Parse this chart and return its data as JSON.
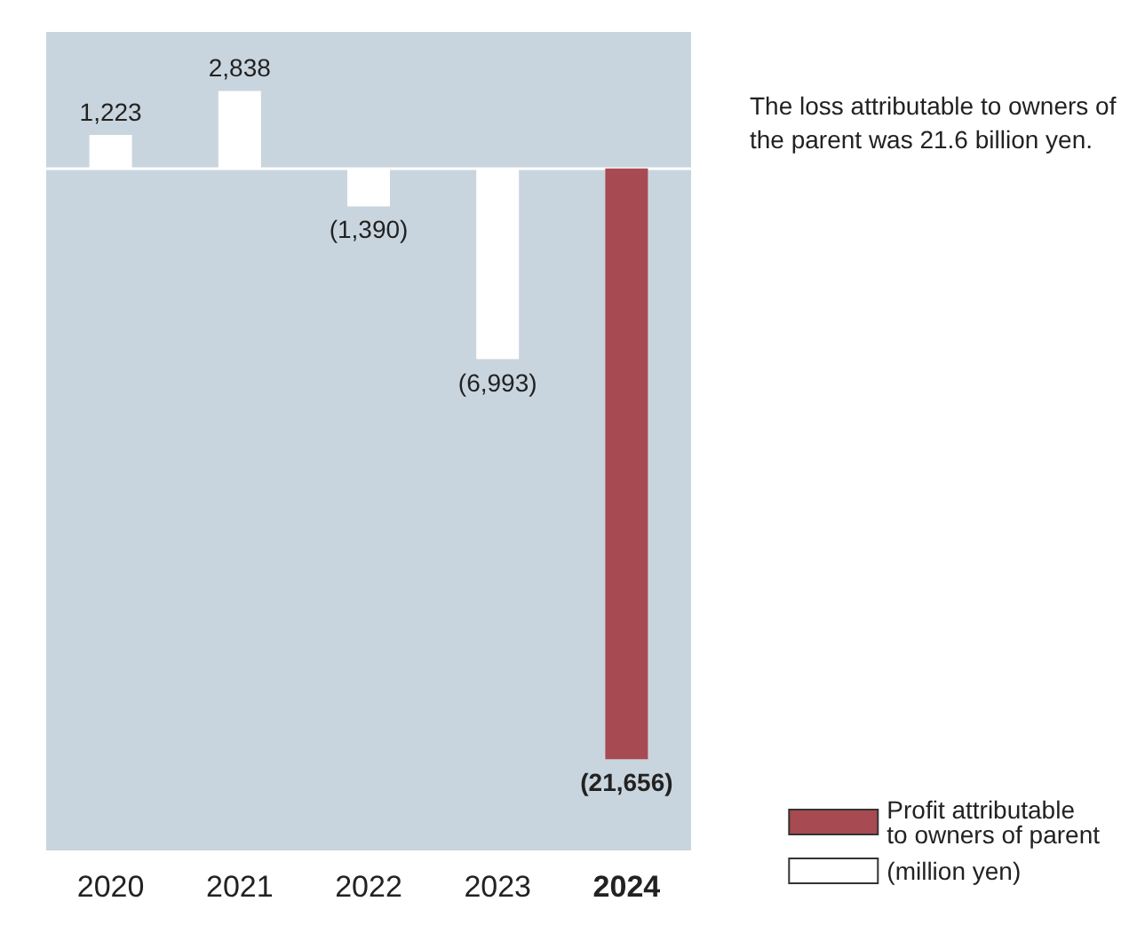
{
  "chart_data": {
    "type": "bar",
    "categories": [
      "2020",
      "2021",
      "2022",
      "2023",
      "2024"
    ],
    "series": [
      {
        "name": "Profit attributable to owners of parent",
        "color": "#a84a52",
        "values": [
          null,
          null,
          null,
          null,
          -21656
        ],
        "value_labels": [
          null,
          null,
          null,
          null,
          "(21,656)"
        ]
      },
      {
        "name": "(million yen)",
        "color": "#ffffff",
        "values": [
          1223,
          2838,
          -1390,
          -6993,
          null
        ],
        "value_labels": [
          "1,223",
          "2,838",
          "(1,390)",
          "(6,993)",
          null
        ]
      }
    ],
    "legend": "bottom right",
    "annotations": [
      "The loss attributable to owners of the parent was 21.6 billion yen."
    ]
  }
}
